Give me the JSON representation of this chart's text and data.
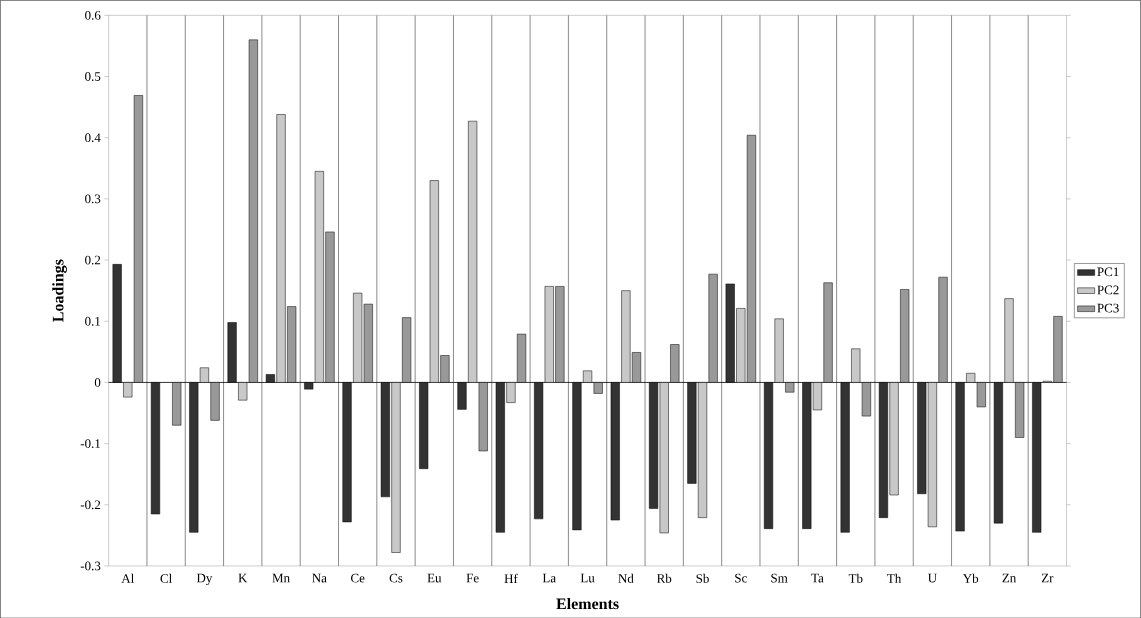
{
  "chart_data": {
    "type": "bar",
    "xlabel": "Elements",
    "ylabel": "Loadings",
    "categories": [
      "Al",
      "Cl",
      "Dy",
      "K",
      "Mn",
      "Na",
      "Ce",
      "Cs",
      "Eu",
      "Fe",
      "Hf",
      "La",
      "Lu",
      "Nd",
      "Rb",
      "Sb",
      "Sc",
      "Sm",
      "Ta",
      "Tb",
      "Th",
      "U",
      "Yb",
      "Zn",
      "Zr"
    ],
    "series": [
      {
        "name": "PC1",
        "color": "#333333",
        "values": [
          0.193,
          -0.215,
          -0.245,
          0.098,
          0.013,
          -0.011,
          -0.228,
          -0.187,
          -0.141,
          -0.044,
          -0.245,
          -0.223,
          -0.241,
          -0.225,
          -0.206,
          -0.165,
          0.161,
          -0.239,
          -0.239,
          -0.245,
          -0.221,
          -0.182,
          -0.243,
          -0.23,
          -0.245
        ]
      },
      {
        "name": "PC2",
        "color": "#c8c8c8",
        "values": [
          -0.024,
          null,
          0.024,
          -0.029,
          0.438,
          0.345,
          0.146,
          -0.278,
          0.33,
          0.427,
          -0.033,
          0.157,
          0.019,
          0.15,
          -0.246,
          -0.221,
          0.121,
          0.104,
          -0.045,
          0.055,
          -0.184,
          -0.236,
          0.015,
          0.137,
          0.002
        ]
      },
      {
        "name": "PC3",
        "color": "#999999",
        "values": [
          0.469,
          -0.07,
          -0.062,
          0.56,
          0.124,
          0.246,
          0.128,
          0.106,
          0.044,
          -0.112,
          0.079,
          0.157,
          -0.018,
          0.049,
          0.062,
          0.177,
          0.404,
          -0.016,
          0.163,
          -0.055,
          0.152,
          0.172,
          -0.04,
          -0.09,
          0.108
        ]
      }
    ],
    "ylim": [
      -0.3,
      0.6
    ],
    "yticks": [
      -0.3,
      -0.2,
      -0.1,
      0,
      0.1,
      0.2,
      0.3,
      0.4,
      0.5,
      0.6
    ],
    "grid": "x",
    "legend": "right"
  }
}
